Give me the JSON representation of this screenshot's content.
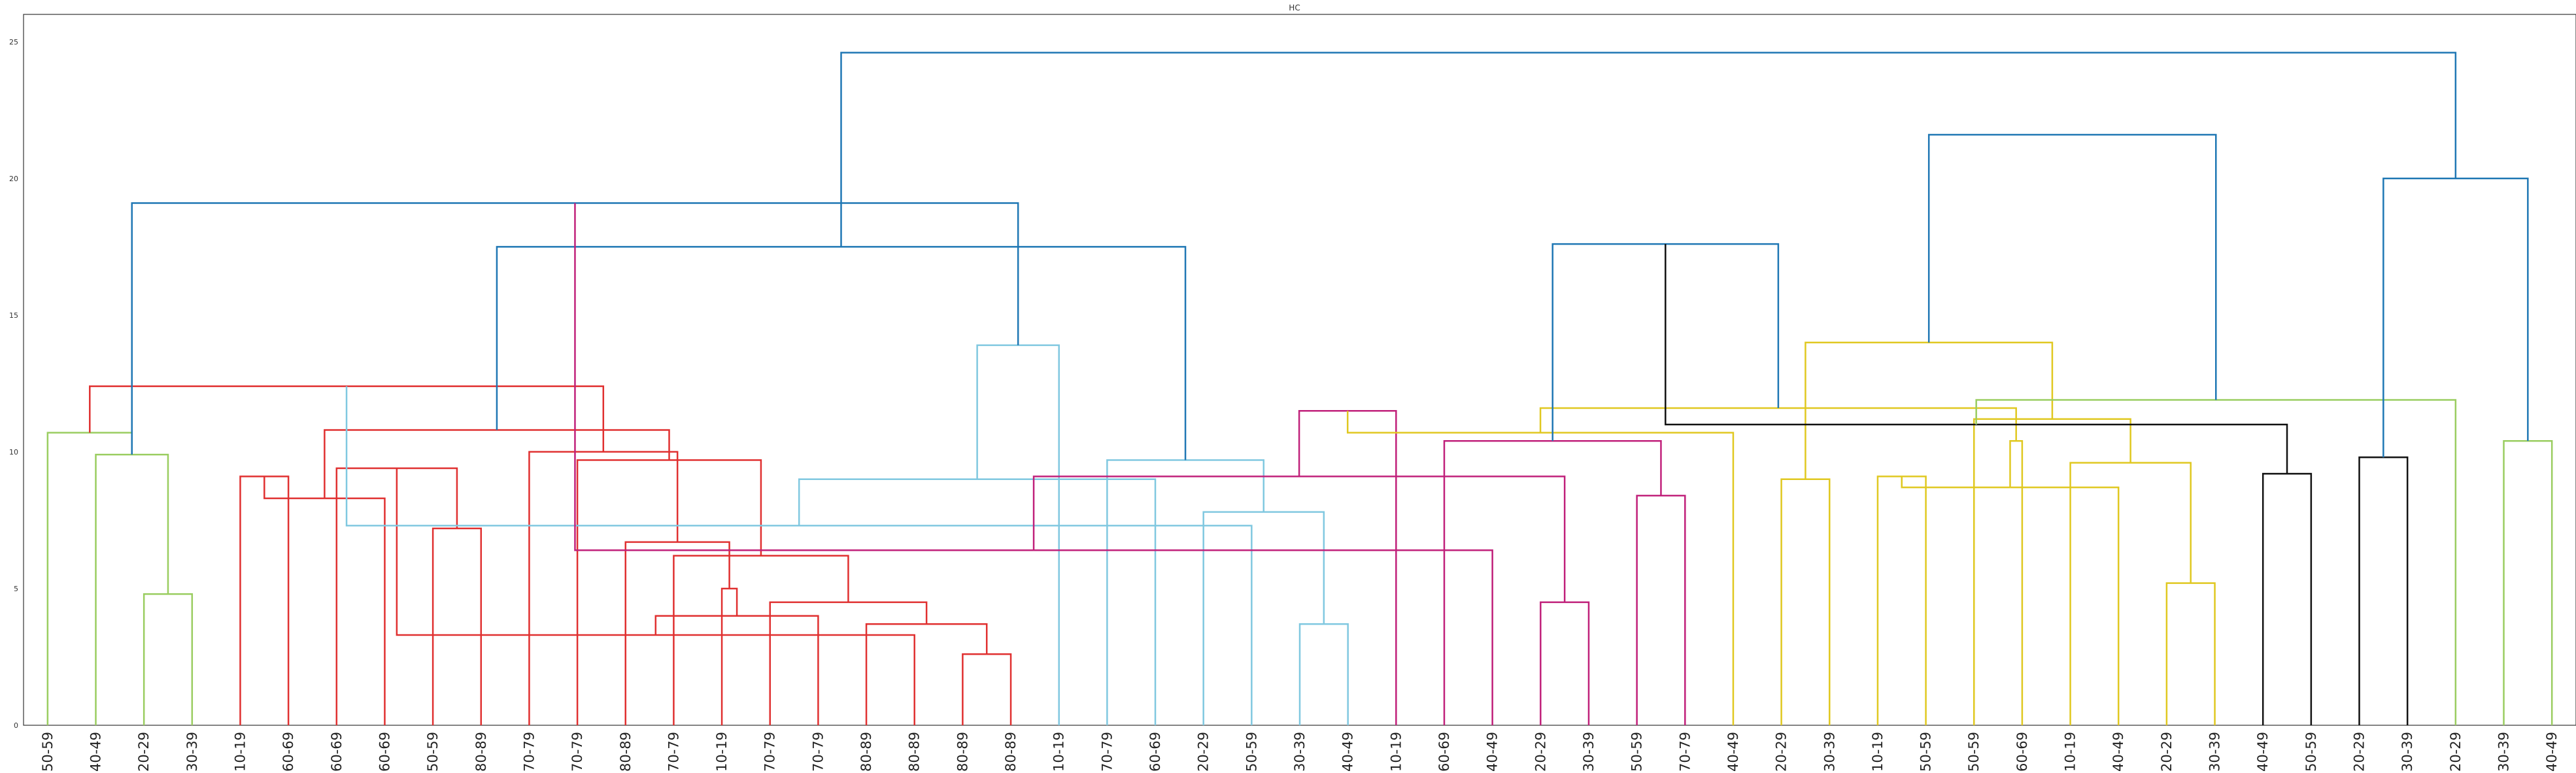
{
  "chart_data": {
    "type": "dendrogram",
    "title": "HC",
    "ylim": [
      0,
      26
    ],
    "yticks": [
      0,
      5,
      10,
      15,
      20,
      25
    ],
    "leaves": [
      "50-59",
      "40-49",
      "20-29",
      "30-39",
      "10-19",
      "60-69",
      "60-69",
      "60-69",
      "50-59",
      "80-89",
      "70-79",
      "70-79",
      "80-89",
      "70-79",
      "10-19",
      "70-79",
      "70-79",
      "80-89",
      "80-89",
      "80-89",
      "80-89",
      "10-19",
      "70-79",
      "60-69",
      "20-29",
      "50-59",
      "30-39",
      "40-49",
      "10-19",
      "60-69",
      "40-49",
      "20-29",
      "30-39",
      "50-59",
      "70-79",
      "40-49",
      "20-29",
      "30-39",
      "10-19",
      "50-59",
      "50-59",
      "60-69",
      "10-19",
      "40-49",
      "20-29",
      "30-39",
      "40-49",
      "50-59",
      "20-29",
      "30-39",
      "20-29",
      "30-39",
      "40-49"
    ],
    "colors": {
      "above_threshold": "#1f77b4",
      "green": "#9acd60",
      "red": "#e03030",
      "cyan": "#80c8e0",
      "magenta": "#c0207a",
      "yellow": "#e0c820",
      "black": "#111111"
    },
    "merges": [
      {
        "a": 2,
        "b": 3,
        "height": 4.8,
        "color": "green"
      },
      {
        "a": 1,
        "b": 53,
        "height": 9.9,
        "color": "green"
      },
      {
        "a": 0,
        "b": 54,
        "height": 10.7,
        "color": "green"
      },
      {
        "a": 4,
        "b": 5,
        "height": 9.1,
        "color": "red"
      },
      {
        "a": 8,
        "b": 9,
        "height": 7.2,
        "color": "red"
      },
      {
        "a": 7,
        "b": 56,
        "height": 8.3,
        "color": "red"
      },
      {
        "a": 6,
        "b": 57,
        "height": 9.4,
        "color": "red"
      },
      {
        "a": 19,
        "b": 20,
        "height": 2.6,
        "color": "red"
      },
      {
        "a": 18,
        "b": 59,
        "height": 3.3,
        "color": "red"
      },
      {
        "a": 17,
        "b": 60,
        "height": 3.7,
        "color": "red"
      },
      {
        "a": 16,
        "b": 61,
        "height": 4.0,
        "color": "red"
      },
      {
        "a": 15,
        "b": 62,
        "height": 4.5,
        "color": "red"
      },
      {
        "a": 14,
        "b": 63,
        "height": 5.0,
        "color": "red"
      },
      {
        "a": 13,
        "b": 64,
        "height": 6.2,
        "color": "red"
      },
      {
        "a": 12,
        "b": 65,
        "height": 6.7,
        "color": "red"
      },
      {
        "a": 11,
        "b": 66,
        "height": 9.7,
        "color": "red"
      },
      {
        "a": 10,
        "b": 67,
        "height": 10.0,
        "color": "red"
      },
      {
        "a": 58,
        "b": 68,
        "height": 10.8,
        "color": "red"
      },
      {
        "a": 55,
        "b": 69,
        "height": 12.4,
        "color": "red"
      },
      {
        "a": 26,
        "b": 27,
        "height": 3.7,
        "color": "cyan"
      },
      {
        "a": 25,
        "b": 71,
        "height": 7.3,
        "color": "cyan"
      },
      {
        "a": 24,
        "b": 72,
        "height": 7.8,
        "color": "cyan"
      },
      {
        "a": 23,
        "b": 73,
        "height": 9.0,
        "color": "cyan"
      },
      {
        "a": 22,
        "b": 74,
        "height": 9.7,
        "color": "cyan"
      },
      {
        "a": 21,
        "b": 75,
        "height": 13.9,
        "color": "cyan"
      },
      {
        "a": 70,
        "b": 76,
        "height": 17.5,
        "color": "above_threshold"
      },
      {
        "a": 54,
        "b": 77,
        "height": 19.1,
        "color": "above_threshold"
      },
      {
        "a": 31,
        "b": 32,
        "height": 4.5,
        "color": "magenta"
      },
      {
        "a": 30,
        "b": 79,
        "height": 6.4,
        "color": "magenta"
      },
      {
        "a": 33,
        "b": 34,
        "height": 8.4,
        "color": "magenta"
      },
      {
        "a": 80,
        "b": 81,
        "height": 9.1,
        "color": "magenta"
      },
      {
        "a": 29,
        "b": 82,
        "height": 10.4,
        "color": "magenta"
      },
      {
        "a": 28,
        "b": 83,
        "height": 11.5,
        "color": "magenta"
      },
      {
        "a": 36,
        "b": 37,
        "height": 9.0,
        "color": "yellow"
      },
      {
        "a": 35,
        "b": 85,
        "height": 10.7,
        "color": "yellow"
      },
      {
        "a": 38,
        "b": 39,
        "height": 9.1,
        "color": "yellow"
      },
      {
        "a": 44,
        "b": 45,
        "height": 5.2,
        "color": "yellow"
      },
      {
        "a": 43,
        "b": 88,
        "height": 8.7,
        "color": "yellow"
      },
      {
        "a": 42,
        "b": 89,
        "height": 9.6,
        "color": "yellow"
      },
      {
        "a": 41,
        "b": 90,
        "height": 10.4,
        "color": "yellow"
      },
      {
        "a": 40,
        "b": 91,
        "height": 11.2,
        "color": "yellow"
      },
      {
        "a": 87,
        "b": 92,
        "height": 11.6,
        "color": "yellow"
      },
      {
        "a": 86,
        "b": 93,
        "height": 14.0,
        "color": "yellow"
      },
      {
        "a": 84,
        "b": 94,
        "height": 17.6,
        "color": "above_threshold"
      },
      {
        "a": 46,
        "b": 47,
        "height": 9.2,
        "color": "black"
      },
      {
        "a": 48,
        "b": 49,
        "height": 9.8,
        "color": "black"
      },
      {
        "a": 96,
        "b": 97,
        "height": 11.0,
        "color": "black"
      },
      {
        "a": 51,
        "b": 52,
        "height": 10.4,
        "color": "green"
      },
      {
        "a": 50,
        "b": 99,
        "height": 11.9,
        "color": "green"
      },
      {
        "a": 98,
        "b": 100,
        "height": 20.0,
        "color": "above_threshold"
      },
      {
        "a": 95,
        "b": 101,
        "height": 21.6,
        "color": "above_threshold"
      },
      {
        "a": 78,
        "b": 102,
        "height": 24.6,
        "color": "above_threshold"
      }
    ]
  }
}
